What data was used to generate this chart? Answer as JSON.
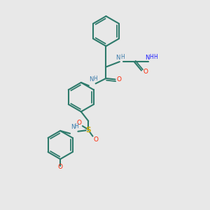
{
  "bg_color": "#e8e8e8",
  "bond_color": "#2d7a6b",
  "n_color": "#3a7aaa",
  "n_color2": "#1a1aff",
  "o_color": "#ff2200",
  "s_color": "#ccaa00",
  "line_width": 1.5,
  "fig_size": [
    3.0,
    3.0
  ],
  "dpi": 100,
  "xlim": [
    0,
    10
  ],
  "ylim": [
    0,
    10
  ]
}
